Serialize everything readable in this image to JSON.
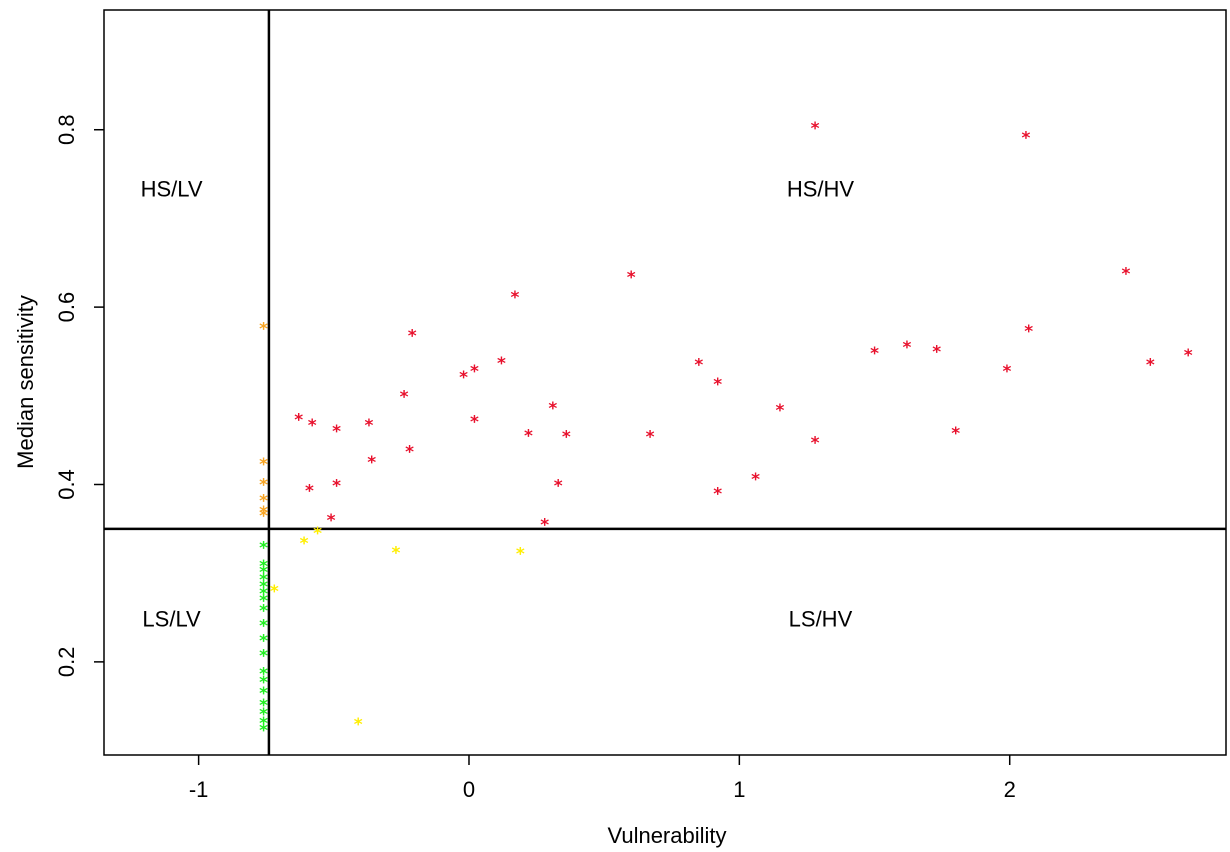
{
  "chart_data": {
    "type": "scatter",
    "title": "",
    "xlabel": "Vulnerability",
    "ylabel": "Median sensitivity",
    "xlim": [
      -1.35,
      2.8
    ],
    "ylim": [
      0.095,
      0.935
    ],
    "xticks": [
      {
        "value": -1,
        "label": "-1"
      },
      {
        "value": 0,
        "label": "0"
      },
      {
        "value": 1,
        "label": "1"
      },
      {
        "value": 2,
        "label": "2"
      }
    ],
    "yticks": [
      {
        "value": 0.2,
        "label": "0.2"
      },
      {
        "value": 0.4,
        "label": "0.4"
      },
      {
        "value": 0.6,
        "label": "0.6"
      },
      {
        "value": 0.8,
        "label": "0.8"
      }
    ],
    "threshold_x": -0.74,
    "threshold_y": 0.35,
    "grid": false,
    "marker": "*",
    "quadrant_labels": [
      {
        "text": "HS/LV",
        "x": -1.1,
        "y": 0.725
      },
      {
        "text": "HS/HV",
        "x": 1.3,
        "y": 0.725
      },
      {
        "text": "LS/LV",
        "x": -1.1,
        "y": 0.24
      },
      {
        "text": "LS/HV",
        "x": 1.3,
        "y": 0.24
      }
    ],
    "series": [
      {
        "color": "#e8112d",
        "points": [
          [
            -0.63,
            0.472
          ],
          [
            -0.58,
            0.466
          ],
          [
            -0.49,
            0.459
          ],
          [
            -0.37,
            0.466
          ],
          [
            -0.59,
            0.392
          ],
          [
            -0.49,
            0.398
          ],
          [
            -0.36,
            0.424
          ],
          [
            -0.51,
            0.359
          ],
          [
            -0.24,
            0.498
          ],
          [
            -0.21,
            0.567
          ],
          [
            -0.22,
            0.436
          ],
          [
            -0.02,
            0.52
          ],
          [
            0.02,
            0.527
          ],
          [
            0.02,
            0.47
          ],
          [
            0.12,
            0.536
          ],
          [
            0.17,
            0.61
          ],
          [
            0.22,
            0.454
          ],
          [
            0.28,
            0.354
          ],
          [
            0.31,
            0.485
          ],
          [
            0.33,
            0.398
          ],
          [
            0.36,
            0.453
          ],
          [
            0.6,
            0.633
          ],
          [
            0.67,
            0.453
          ],
          [
            0.85,
            0.534
          ],
          [
            0.92,
            0.512
          ],
          [
            0.92,
            0.389
          ],
          [
            1.06,
            0.405
          ],
          [
            1.15,
            0.483
          ],
          [
            1.28,
            0.446
          ],
          [
            1.28,
            0.801
          ],
          [
            1.5,
            0.547
          ],
          [
            1.62,
            0.554
          ],
          [
            1.73,
            0.549
          ],
          [
            1.8,
            0.457
          ],
          [
            1.99,
            0.527
          ],
          [
            2.06,
            0.79
          ],
          [
            2.07,
            0.572
          ],
          [
            2.43,
            0.637
          ],
          [
            2.52,
            0.534
          ],
          [
            2.66,
            0.545
          ]
        ]
      },
      {
        "color": "#f7a525",
        "points": [
          [
            -0.76,
            0.575
          ],
          [
            -0.76,
            0.422
          ],
          [
            -0.76,
            0.399
          ],
          [
            -0.76,
            0.381
          ],
          [
            -0.76,
            0.368
          ],
          [
            -0.76,
            0.364
          ]
        ]
      },
      {
        "color": "#ffee00",
        "points": [
          [
            -0.61,
            0.333
          ],
          [
            -0.56,
            0.344
          ],
          [
            -0.27,
            0.322
          ],
          [
            0.19,
            0.321
          ],
          [
            -0.41,
            0.129
          ],
          [
            -0.72,
            0.279
          ]
        ]
      },
      {
        "color": "#22ee22",
        "points": [
          [
            -0.76,
            0.328
          ],
          [
            -0.76,
            0.307
          ],
          [
            -0.76,
            0.3
          ],
          [
            -0.76,
            0.292
          ],
          [
            -0.76,
            0.284
          ],
          [
            -0.76,
            0.276
          ],
          [
            -0.76,
            0.268
          ],
          [
            -0.76,
            0.257
          ],
          [
            -0.76,
            0.24
          ],
          [
            -0.76,
            0.223
          ],
          [
            -0.76,
            0.206
          ],
          [
            -0.76,
            0.186
          ],
          [
            -0.76,
            0.176
          ],
          [
            -0.76,
            0.164
          ],
          [
            -0.76,
            0.15
          ],
          [
            -0.76,
            0.14
          ],
          [
            -0.76,
            0.13
          ],
          [
            -0.76,
            0.122
          ]
        ]
      }
    ]
  }
}
